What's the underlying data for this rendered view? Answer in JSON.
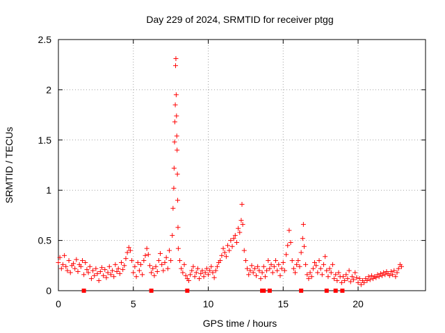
{
  "chart_data": {
    "type": "scatter",
    "title": "Day 229 of 2024, SRMTID for receiver ptgg",
    "xlabel": "GPS time / hours",
    "ylabel": "SRMTID / TECUs",
    "xlim": [
      0,
      24.5
    ],
    "ylim": [
      0,
      2.5
    ],
    "xticks": [
      0,
      5,
      10,
      15,
      20
    ],
    "xtick_labels": [
      "0",
      "5",
      "10",
      "15",
      "20"
    ],
    "yticks": [
      0,
      0.5,
      1,
      1.5,
      2,
      2.5
    ],
    "ytick_labels": [
      "0",
      "0.5",
      "1",
      "1.5",
      "2",
      "2.5"
    ],
    "grid": true,
    "marker_color": "#ff0000",
    "series": [
      {
        "name": "SRMTID",
        "marker": "plus",
        "points": [
          [
            0.0,
            0.28
          ],
          [
            0.1,
            0.33
          ],
          [
            0.2,
            0.22
          ],
          [
            0.3,
            0.26
          ],
          [
            0.4,
            0.35
          ],
          [
            0.5,
            0.24
          ],
          [
            0.6,
            0.2
          ],
          [
            0.7,
            0.3
          ],
          [
            0.8,
            0.18
          ],
          [
            0.9,
            0.25
          ],
          [
            1.0,
            0.27
          ],
          [
            1.1,
            0.22
          ],
          [
            1.2,
            0.31
          ],
          [
            1.3,
            0.19
          ],
          [
            1.4,
            0.26
          ],
          [
            1.5,
            0.24
          ],
          [
            1.6,
            0.3
          ],
          [
            1.7,
            0.16
          ],
          [
            1.8,
            0.28
          ],
          [
            1.9,
            0.21
          ],
          [
            2.0,
            0.18
          ],
          [
            2.1,
            0.24
          ],
          [
            2.2,
            0.12
          ],
          [
            2.3,
            0.2
          ],
          [
            2.4,
            0.15
          ],
          [
            2.5,
            0.22
          ],
          [
            2.6,
            0.17
          ],
          [
            2.7,
            0.1
          ],
          [
            2.8,
            0.19
          ],
          [
            2.9,
            0.23
          ],
          [
            3.0,
            0.15
          ],
          [
            3.1,
            0.21
          ],
          [
            3.2,
            0.13
          ],
          [
            3.3,
            0.18
          ],
          [
            3.4,
            0.24
          ],
          [
            3.5,
            0.16
          ],
          [
            3.6,
            0.2
          ],
          [
            3.7,
            0.14
          ],
          [
            3.8,
            0.26
          ],
          [
            3.9,
            0.19
          ],
          [
            4.0,
            0.22
          ],
          [
            4.1,
            0.17
          ],
          [
            4.2,
            0.28
          ],
          [
            4.3,
            0.21
          ],
          [
            4.4,
            0.25
          ],
          [
            4.5,
            0.32
          ],
          [
            4.6,
            0.38
          ],
          [
            4.7,
            0.43
          ],
          [
            4.8,
            0.4
          ],
          [
            4.9,
            0.3
          ],
          [
            5.0,
            0.18
          ],
          [
            5.1,
            0.24
          ],
          [
            5.2,
            0.14
          ],
          [
            5.3,
            0.28
          ],
          [
            5.4,
            0.2
          ],
          [
            5.5,
            0.26
          ],
          [
            5.6,
            0.16
          ],
          [
            5.7,
            0.3
          ],
          [
            5.8,
            0.35
          ],
          [
            5.9,
            0.42
          ],
          [
            6.0,
            0.36
          ],
          [
            6.1,
            0.25
          ],
          [
            6.2,
            0.18
          ],
          [
            6.3,
            0.22
          ],
          [
            6.4,
            0.15
          ],
          [
            6.5,
            0.24
          ],
          [
            6.6,
            0.19
          ],
          [
            6.7,
            0.3
          ],
          [
            6.8,
            0.37
          ],
          [
            6.9,
            0.26
          ],
          [
            7.0,
            0.2
          ],
          [
            7.1,
            0.28
          ],
          [
            7.2,
            0.33
          ],
          [
            7.3,
            0.22
          ],
          [
            7.4,
            0.4
          ],
          [
            7.5,
            0.3
          ],
          [
            7.6,
            0.55
          ],
          [
            7.65,
            0.82
          ],
          [
            7.7,
            1.02
          ],
          [
            7.72,
            1.22
          ],
          [
            7.75,
            1.48
          ],
          [
            7.77,
            1.68
          ],
          [
            7.8,
            1.85
          ],
          [
            7.82,
            2.24
          ],
          [
            7.84,
            2.31
          ],
          [
            7.86,
            1.95
          ],
          [
            7.88,
            1.74
          ],
          [
            7.9,
            1.54
          ],
          [
            7.92,
            1.4
          ],
          [
            7.94,
            1.16
          ],
          [
            7.96,
            0.9
          ],
          [
            7.98,
            0.63
          ],
          [
            8.0,
            0.42
          ],
          [
            8.1,
            0.3
          ],
          [
            8.2,
            0.22
          ],
          [
            8.3,
            0.18
          ],
          [
            8.4,
            0.26
          ],
          [
            8.5,
            0.15
          ],
          [
            8.6,
            0.12
          ],
          [
            8.7,
            0.1
          ],
          [
            8.8,
            0.16
          ],
          [
            8.9,
            0.2
          ],
          [
            9.0,
            0.24
          ],
          [
            9.1,
            0.14
          ],
          [
            9.2,
            0.18
          ],
          [
            9.3,
            0.22
          ],
          [
            9.4,
            0.12
          ],
          [
            9.5,
            0.17
          ],
          [
            9.6,
            0.2
          ],
          [
            9.7,
            0.14
          ],
          [
            9.8,
            0.18
          ],
          [
            9.9,
            0.22
          ],
          [
            10.0,
            0.16
          ],
          [
            10.1,
            0.2
          ],
          [
            10.2,
            0.24
          ],
          [
            10.3,
            0.18
          ],
          [
            10.4,
            0.13
          ],
          [
            10.5,
            0.2
          ],
          [
            10.6,
            0.24
          ],
          [
            10.7,
            0.28
          ],
          [
            10.8,
            0.3
          ],
          [
            10.9,
            0.35
          ],
          [
            11.0,
            0.42
          ],
          [
            11.1,
            0.38
          ],
          [
            11.2,
            0.34
          ],
          [
            11.3,
            0.45
          ],
          [
            11.4,
            0.4
          ],
          [
            11.5,
            0.5
          ],
          [
            11.6,
            0.44
          ],
          [
            11.7,
            0.52
          ],
          [
            11.8,
            0.55
          ],
          [
            11.9,
            0.48
          ],
          [
            12.0,
            0.62
          ],
          [
            12.1,
            0.58
          ],
          [
            12.2,
            0.7
          ],
          [
            12.25,
            0.86
          ],
          [
            12.3,
            0.66
          ],
          [
            12.4,
            0.4
          ],
          [
            12.5,
            0.3
          ],
          [
            12.6,
            0.22
          ],
          [
            12.7,
            0.16
          ],
          [
            12.8,
            0.2
          ],
          [
            12.9,
            0.25
          ],
          [
            13.0,
            0.18
          ],
          [
            13.1,
            0.22
          ],
          [
            13.2,
            0.15
          ],
          [
            13.3,
            0.24
          ],
          [
            13.4,
            0.2
          ],
          [
            13.5,
            0.12
          ],
          [
            13.6,
            0.18
          ],
          [
            13.7,
            0.24
          ],
          [
            13.8,
            0.14
          ],
          [
            13.9,
            0.2
          ],
          [
            14.0,
            0.3
          ],
          [
            14.1,
            0.22
          ],
          [
            14.2,
            0.26
          ],
          [
            14.3,
            0.18
          ],
          [
            14.4,
            0.24
          ],
          [
            14.5,
            0.3
          ],
          [
            14.6,
            0.2
          ],
          [
            14.7,
            0.26
          ],
          [
            14.8,
            0.15
          ],
          [
            14.9,
            0.22
          ],
          [
            15.0,
            0.28
          ],
          [
            15.1,
            0.2
          ],
          [
            15.2,
            0.36
          ],
          [
            15.3,
            0.45
          ],
          [
            15.4,
            0.6
          ],
          [
            15.5,
            0.48
          ],
          [
            15.6,
            0.3
          ],
          [
            15.7,
            0.22
          ],
          [
            15.8,
            0.18
          ],
          [
            15.9,
            0.26
          ],
          [
            16.0,
            0.3
          ],
          [
            16.1,
            0.24
          ],
          [
            16.2,
            0.38
          ],
          [
            16.3,
            0.52
          ],
          [
            16.35,
            0.66
          ],
          [
            16.4,
            0.44
          ],
          [
            16.5,
            0.26
          ],
          [
            16.6,
            0.16
          ],
          [
            16.7,
            0.12
          ],
          [
            16.8,
            0.18
          ],
          [
            16.9,
            0.14
          ],
          [
            17.0,
            0.22
          ],
          [
            17.1,
            0.28
          ],
          [
            17.2,
            0.25
          ],
          [
            17.3,
            0.18
          ],
          [
            17.4,
            0.3
          ],
          [
            17.5,
            0.22
          ],
          [
            17.6,
            0.16
          ],
          [
            17.7,
            0.26
          ],
          [
            17.8,
            0.34
          ],
          [
            17.9,
            0.2
          ],
          [
            18.0,
            0.14
          ],
          [
            18.1,
            0.22
          ],
          [
            18.2,
            0.18
          ],
          [
            18.3,
            0.26
          ],
          [
            18.4,
            0.12
          ],
          [
            18.5,
            0.16
          ],
          [
            18.6,
            0.1
          ],
          [
            18.7,
            0.18
          ],
          [
            18.8,
            0.14
          ],
          [
            18.9,
            0.08
          ],
          [
            19.0,
            0.14
          ],
          [
            19.1,
            0.1
          ],
          [
            19.2,
            0.16
          ],
          [
            19.3,
            0.12
          ],
          [
            19.4,
            0.2
          ],
          [
            19.5,
            0.09
          ],
          [
            19.6,
            0.14
          ],
          [
            19.7,
            0.11
          ],
          [
            19.8,
            0.18
          ],
          [
            19.9,
            0.13
          ],
          [
            20.0,
            0.08
          ],
          [
            20.1,
            0.12
          ],
          [
            20.2,
            0.06
          ],
          [
            20.3,
            0.1
          ],
          [
            20.4,
            0.08
          ],
          [
            20.5,
            0.12
          ],
          [
            20.6,
            0.1
          ],
          [
            20.7,
            0.14
          ],
          [
            20.8,
            0.11
          ],
          [
            20.9,
            0.15
          ],
          [
            21.0,
            0.12
          ],
          [
            21.1,
            0.14
          ],
          [
            21.2,
            0.13
          ],
          [
            21.3,
            0.16
          ],
          [
            21.4,
            0.14
          ],
          [
            21.5,
            0.17
          ],
          [
            21.6,
            0.15
          ],
          [
            21.7,
            0.18
          ],
          [
            21.8,
            0.16
          ],
          [
            21.9,
            0.19
          ],
          [
            22.0,
            0.17
          ],
          [
            22.1,
            0.15
          ],
          [
            22.2,
            0.19
          ],
          [
            22.3,
            0.16
          ],
          [
            22.4,
            0.2
          ],
          [
            22.5,
            0.14
          ],
          [
            22.6,
            0.18
          ],
          [
            22.7,
            0.22
          ],
          [
            22.8,
            0.26
          ],
          [
            22.9,
            0.24
          ]
        ]
      },
      {
        "name": "zero markers",
        "marker": "square",
        "points": [
          [
            1.7,
            0
          ],
          [
            6.2,
            0
          ],
          [
            8.6,
            0
          ],
          [
            13.6,
            0
          ],
          [
            13.7,
            0
          ],
          [
            14.1,
            0
          ],
          [
            16.2,
            0
          ],
          [
            17.9,
            0
          ],
          [
            18.5,
            0
          ],
          [
            18.95,
            0
          ]
        ]
      }
    ]
  }
}
